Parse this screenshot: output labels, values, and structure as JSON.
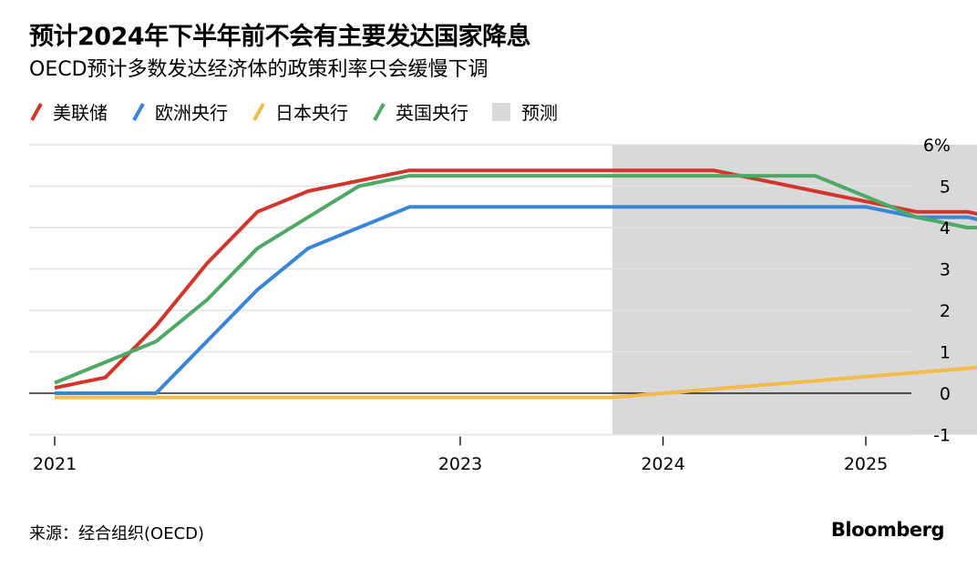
{
  "header": {
    "title": "预计2024年下半年前不会有主要发达国家降息",
    "subtitle": "OECD预计多数发达经济体的政策利率只会缓慢下调"
  },
  "legend": {
    "items": [
      {
        "label": "美联储",
        "color": "#d1352b"
      },
      {
        "label": "欧洲央行",
        "color": "#3b85d8"
      },
      {
        "label": "日本央行",
        "color": "#f4bb4a"
      },
      {
        "label": "英国央行",
        "color": "#4fa866"
      }
    ],
    "forecast_label": "预测",
    "forecast_color": "#d9d9d9"
  },
  "footer": {
    "source": "来源：经合组织(OECD)",
    "brand": "Bloomberg"
  },
  "chart_data": {
    "type": "line",
    "title": "预计2024年下半年前不会有主要发达国家降息",
    "subtitle": "OECD预计多数发达经济体的政策利率只会缓慢下调",
    "x_axis": {
      "range": [
        2021.0,
        2025.7
      ],
      "ticks": [
        2021,
        2023,
        2024,
        2025
      ],
      "tick_labels": [
        "2021",
        "2023",
        "2024",
        "2025"
      ]
    },
    "y_axis": {
      "range": [
        -1,
        6
      ],
      "ticks": [
        -1,
        0,
        1,
        2,
        3,
        4,
        5,
        6
      ],
      "tick_labels": [
        "-1",
        "0",
        "1",
        "2",
        "3",
        "4",
        "5",
        "6%"
      ],
      "position": "right",
      "grid": true
    },
    "forecast_region": {
      "label": "预测",
      "x_start": 2023.75,
      "x_end": 2025.75
    },
    "series": [
      {
        "name": "美联储",
        "color": "#d1352b",
        "points": [
          [
            2021.0,
            0.13
          ],
          [
            2021.25,
            0.38
          ],
          [
            2021.5,
            1.63
          ],
          [
            2021.75,
            3.13
          ],
          [
            2022.0,
            4.38
          ],
          [
            2022.25,
            4.88
          ],
          [
            2022.5,
            5.13
          ],
          [
            2022.75,
            5.38
          ],
          [
            2023.0,
            5.38
          ],
          [
            2023.25,
            5.38
          ],
          [
            2023.5,
            5.38
          ],
          [
            2023.75,
            5.38
          ],
          [
            2024.0,
            5.38
          ],
          [
            2024.25,
            5.38
          ],
          [
            2024.5,
            5.13
          ],
          [
            2024.75,
            4.88
          ],
          [
            2025.0,
            4.63
          ],
          [
            2025.25,
            4.38
          ],
          [
            2025.5,
            4.38
          ],
          [
            2025.75,
            4.13
          ]
        ]
      },
      {
        "name": "欧洲央行",
        "color": "#3b85d8",
        "points": [
          [
            2021.0,
            0.0
          ],
          [
            2021.25,
            0.0
          ],
          [
            2021.5,
            0.0
          ],
          [
            2021.75,
            1.25
          ],
          [
            2022.0,
            2.5
          ],
          [
            2022.25,
            3.5
          ],
          [
            2022.5,
            4.0
          ],
          [
            2022.75,
            4.5
          ],
          [
            2023.0,
            4.5
          ],
          [
            2023.25,
            4.5
          ],
          [
            2023.5,
            4.5
          ],
          [
            2023.75,
            4.5
          ],
          [
            2024.0,
            4.5
          ],
          [
            2024.25,
            4.5
          ],
          [
            2024.5,
            4.5
          ],
          [
            2024.75,
            4.5
          ],
          [
            2025.0,
            4.5
          ],
          [
            2025.25,
            4.25
          ],
          [
            2025.5,
            4.25
          ],
          [
            2025.75,
            4.0
          ]
        ]
      },
      {
        "name": "日本央行",
        "color": "#f4bb4a",
        "points": [
          [
            2021.0,
            -0.1
          ],
          [
            2021.25,
            -0.1
          ],
          [
            2021.5,
            -0.1
          ],
          [
            2021.75,
            -0.1
          ],
          [
            2022.0,
            -0.1
          ],
          [
            2022.25,
            -0.1
          ],
          [
            2022.5,
            -0.1
          ],
          [
            2022.75,
            -0.1
          ],
          [
            2023.0,
            -0.1
          ],
          [
            2023.25,
            -0.1
          ],
          [
            2023.5,
            -0.1
          ],
          [
            2023.75,
            -0.1
          ],
          [
            2024.0,
            0.0
          ],
          [
            2024.25,
            0.1
          ],
          [
            2024.5,
            0.2
          ],
          [
            2024.75,
            0.3
          ],
          [
            2025.0,
            0.4
          ],
          [
            2025.25,
            0.5
          ],
          [
            2025.5,
            0.6
          ],
          [
            2025.75,
            0.7
          ]
        ]
      },
      {
        "name": "英国央行",
        "color": "#4fa866",
        "points": [
          [
            2021.0,
            0.25
          ],
          [
            2021.25,
            0.75
          ],
          [
            2021.5,
            1.25
          ],
          [
            2021.75,
            2.25
          ],
          [
            2022.0,
            3.5
          ],
          [
            2022.25,
            4.25
          ],
          [
            2022.5,
            5.0
          ],
          [
            2022.75,
            5.25
          ],
          [
            2023.0,
            5.25
          ],
          [
            2023.25,
            5.25
          ],
          [
            2023.5,
            5.25
          ],
          [
            2023.75,
            5.25
          ],
          [
            2024.0,
            5.25
          ],
          [
            2024.25,
            5.25
          ],
          [
            2024.5,
            5.25
          ],
          [
            2024.75,
            5.25
          ],
          [
            2025.0,
            4.75
          ],
          [
            2025.25,
            4.25
          ],
          [
            2025.5,
            4.0
          ],
          [
            2025.75,
            4.0
          ]
        ]
      }
    ],
    "legend_position": "top-left"
  }
}
